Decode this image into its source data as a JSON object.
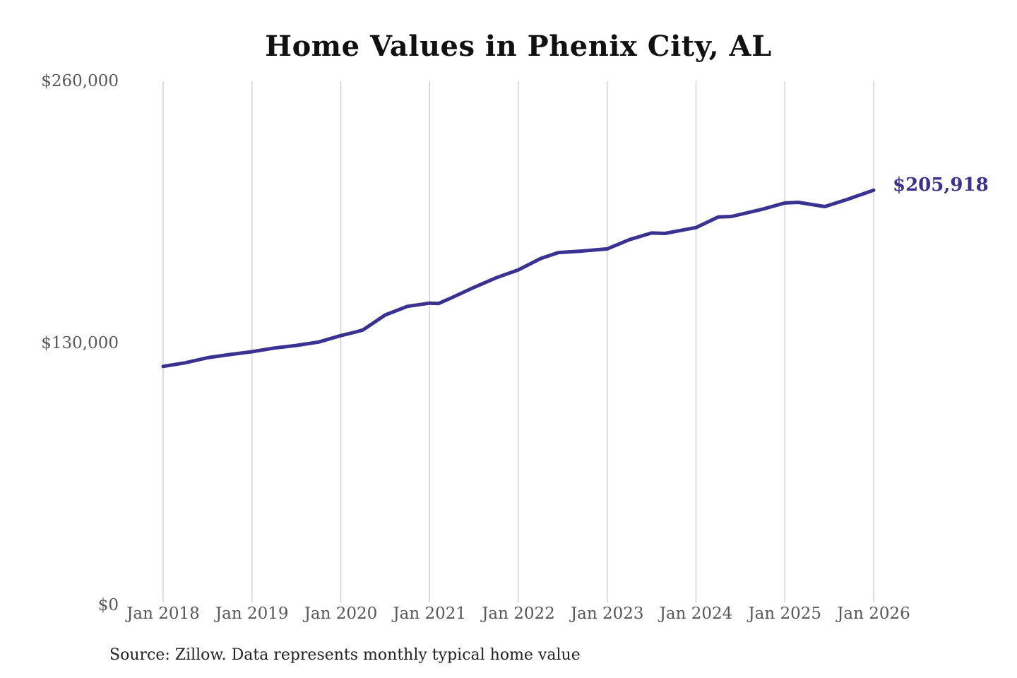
{
  "chart": {
    "title": "Home Values in Phenix City, AL",
    "latest_value_label": "$205,918",
    "source": "Source: Zillow. Data represents monthly typical home value",
    "line_color": "#3a3190",
    "grid_color": "#cbcbcb",
    "tick_label_color": "#57575c",
    "annotation_color": "#3a3190"
  },
  "chart_data": {
    "type": "line",
    "title": "Home Values in Phenix City, AL",
    "xlabel": "",
    "ylabel": "",
    "x_ticks": [
      "Jan 2018",
      "Jan 2019",
      "Jan 2020",
      "Jan 2021",
      "Jan 2022",
      "Jan 2023",
      "Jan 2024",
      "Jan 2025",
      "Jan 2026"
    ],
    "x_tick_years": [
      2018,
      2019,
      2020,
      2021,
      2022,
      2023,
      2024,
      2025,
      2026
    ],
    "y_ticks": [
      "$0",
      "$130,000",
      "$260,000"
    ],
    "y_tick_values": [
      0,
      130000,
      260000
    ],
    "ylim": [
      0,
      260000
    ],
    "xlim": [
      2018,
      2026.08
    ],
    "grid": "vertical-only",
    "legend": "none",
    "series": [
      {
        "name": "Monthly typical home value",
        "points": [
          [
            2018.0,
            118500
          ],
          [
            2018.25,
            120300
          ],
          [
            2018.5,
            122800
          ],
          [
            2018.75,
            124400
          ],
          [
            2019.0,
            125800
          ],
          [
            2019.25,
            127600
          ],
          [
            2019.5,
            128900
          ],
          [
            2019.75,
            130600
          ],
          [
            2020.0,
            133800
          ],
          [
            2020.17,
            135600
          ],
          [
            2020.25,
            136600
          ],
          [
            2020.5,
            144000
          ],
          [
            2020.75,
            148300
          ],
          [
            2021.0,
            149900
          ],
          [
            2021.1,
            149700
          ],
          [
            2021.25,
            152600
          ],
          [
            2021.5,
            157700
          ],
          [
            2021.75,
            162500
          ],
          [
            2022.0,
            166400
          ],
          [
            2022.25,
            172000
          ],
          [
            2022.45,
            175000
          ],
          [
            2022.7,
            175700
          ],
          [
            2023.0,
            176800
          ],
          [
            2023.25,
            181400
          ],
          [
            2023.5,
            184700
          ],
          [
            2023.65,
            184500
          ],
          [
            2024.0,
            187400
          ],
          [
            2024.25,
            192600
          ],
          [
            2024.4,
            192900
          ],
          [
            2024.75,
            196500
          ],
          [
            2025.0,
            199600
          ],
          [
            2025.15,
            199900
          ],
          [
            2025.45,
            197800
          ],
          [
            2025.7,
            201300
          ],
          [
            2026.0,
            205918
          ]
        ]
      }
    ],
    "annotation": {
      "text": "$205,918",
      "value": 205918,
      "x": 2026.0
    }
  }
}
